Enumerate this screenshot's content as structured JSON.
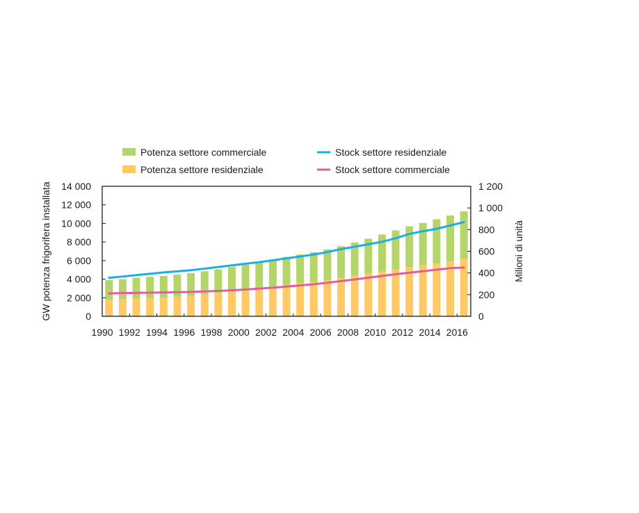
{
  "chart_data": {
    "type": "bar",
    "x": [
      1990,
      1991,
      1992,
      1993,
      1994,
      1995,
      1996,
      1997,
      1998,
      1999,
      2000,
      2001,
      2002,
      2003,
      2004,
      2005,
      2006,
      2007,
      2008,
      2009,
      2010,
      2011,
      2012,
      2013,
      2014,
      2015,
      2016
    ],
    "x_tick_labels": [
      "1990",
      "1992",
      "1994",
      "1996",
      "1998",
      "2000",
      "2002",
      "2004",
      "2006",
      "2008",
      "2010",
      "2012",
      "2014",
      "2016"
    ],
    "stacked": true,
    "bar_series": [
      {
        "name": "Potenza settore residenziale",
        "color": "#FFC966",
        "values": [
          1800,
          1850,
          1900,
          1950,
          2000,
          2100,
          2200,
          2350,
          2500,
          2650,
          2800,
          3000,
          3200,
          3400,
          3550,
          3700,
          3900,
          4100,
          4350,
          4600,
          4800,
          5050,
          5300,
          5500,
          5700,
          5900,
          6200
        ]
      },
      {
        "name": "Potenza settore commerciale",
        "color": "#B5D56A",
        "values": [
          2100,
          2150,
          2250,
          2300,
          2350,
          2400,
          2450,
          2500,
          2550,
          2650,
          2750,
          2850,
          2900,
          3000,
          3100,
          3200,
          3300,
          3450,
          3600,
          3750,
          4000,
          4200,
          4400,
          4550,
          4750,
          4950,
          5100
        ]
      }
    ],
    "line_series": [
      {
        "name": "Stock settore residenziale",
        "color": "#1BAEE4",
        "axis": "right",
        "values": [
          355,
          367,
          380,
          392,
          405,
          415,
          425,
          440,
          455,
          470,
          485,
          500,
          517,
          535,
          552,
          570,
          593,
          620,
          642,
          665,
          688,
          720,
          760,
          785,
          808,
          838,
          870
        ]
      },
      {
        "name": "Stock settore commerciale",
        "color": "#DE5E9E",
        "axis": "right",
        "values": [
          212,
          214,
          216,
          218,
          220,
          222,
          225,
          229,
          234,
          240,
          247,
          255,
          264,
          274,
          285,
          296,
          310,
          325,
          340,
          356,
          372,
          388,
          402,
          416,
          430,
          444,
          450
        ]
      }
    ],
    "ylabel_left": "GW potenza frigorifera installata",
    "ylabel_right": "Milioni di unità",
    "ylim_left": [
      0,
      14000
    ],
    "ylim_right": [
      0,
      1200
    ],
    "y_ticks_left": [
      "0",
      "2 000",
      "4 000",
      "6 000",
      "8 000",
      "10 000",
      "12 000",
      "14 000"
    ],
    "y_ticks_right": [
      "0",
      "200",
      "400",
      "600",
      "800",
      "1 000",
      "1 200"
    ],
    "grid": false,
    "legend_position": "top"
  }
}
